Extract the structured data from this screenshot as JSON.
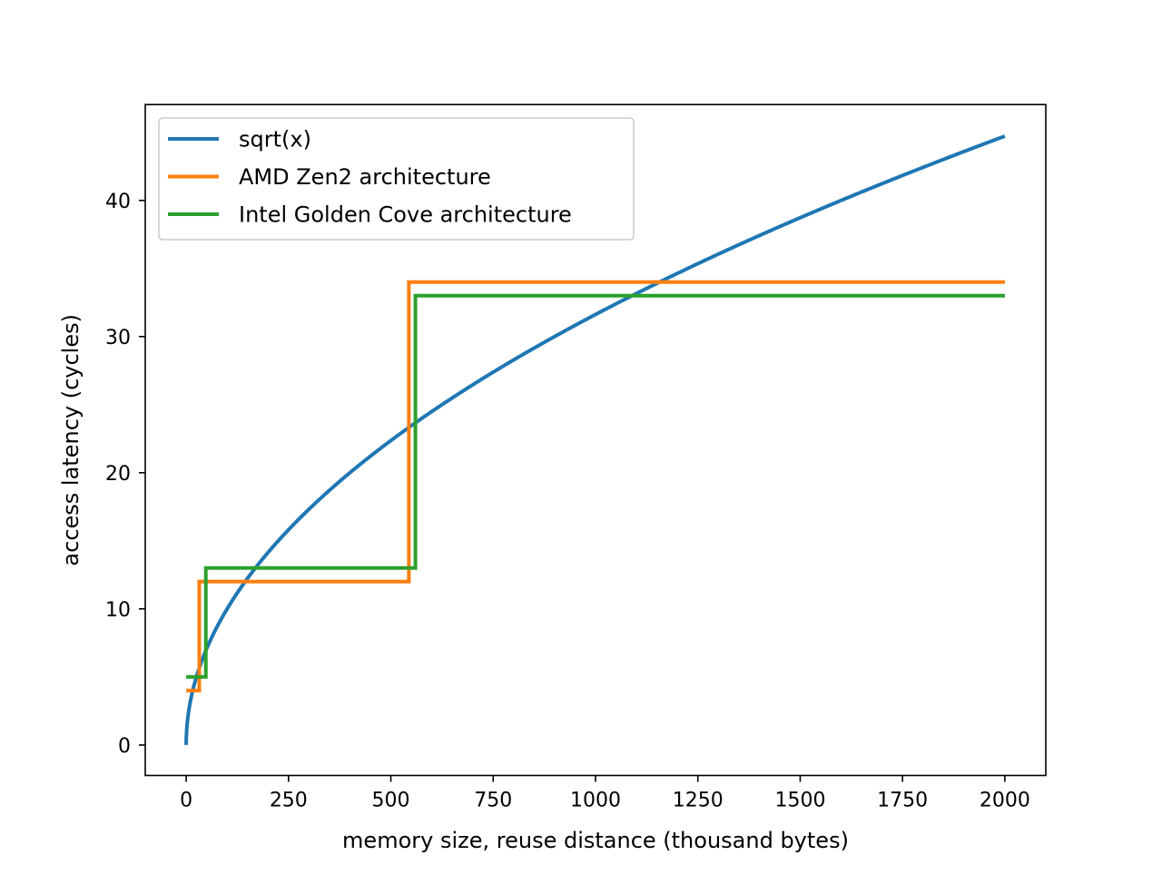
{
  "chart_data": {
    "type": "line",
    "title": "",
    "xlabel": "memory size, reuse distance (thousand bytes)",
    "ylabel": "access latency (cycles)",
    "xlim": [
      -100,
      2100
    ],
    "ylim": [
      -2.24,
      47.04
    ],
    "xticks": [
      0,
      250,
      500,
      750,
      1000,
      1250,
      1500,
      1750,
      2000
    ],
    "xtick_labels": [
      "0",
      "250",
      "500",
      "750",
      "1000",
      "1250",
      "1500",
      "1750",
      "2000"
    ],
    "yticks": [
      0,
      10,
      20,
      30,
      40
    ],
    "ytick_labels": [
      "0",
      "10",
      "20",
      "30",
      "40"
    ],
    "grid": false,
    "legend_position": "upper-left",
    "series": [
      {
        "name": "sqrt(x)",
        "color": "#1f77b4",
        "kind": "function",
        "function": "sqrt",
        "x_range": [
          0,
          2000
        ]
      },
      {
        "name": "AMD Zen2 architecture",
        "color": "#ff7f0e",
        "kind": "step",
        "points": [
          [
            0,
            4
          ],
          [
            32,
            4
          ],
          [
            32,
            12
          ],
          [
            544,
            12
          ],
          [
            544,
            34
          ],
          [
            2000,
            34
          ]
        ]
      },
      {
        "name": "Intel Golden Cove architecture",
        "color": "#2ca02c",
        "kind": "step",
        "points": [
          [
            0,
            5
          ],
          [
            48,
            5
          ],
          [
            48,
            13
          ],
          [
            560,
            13
          ],
          [
            560,
            33
          ],
          [
            2000,
            33
          ]
        ]
      }
    ]
  }
}
